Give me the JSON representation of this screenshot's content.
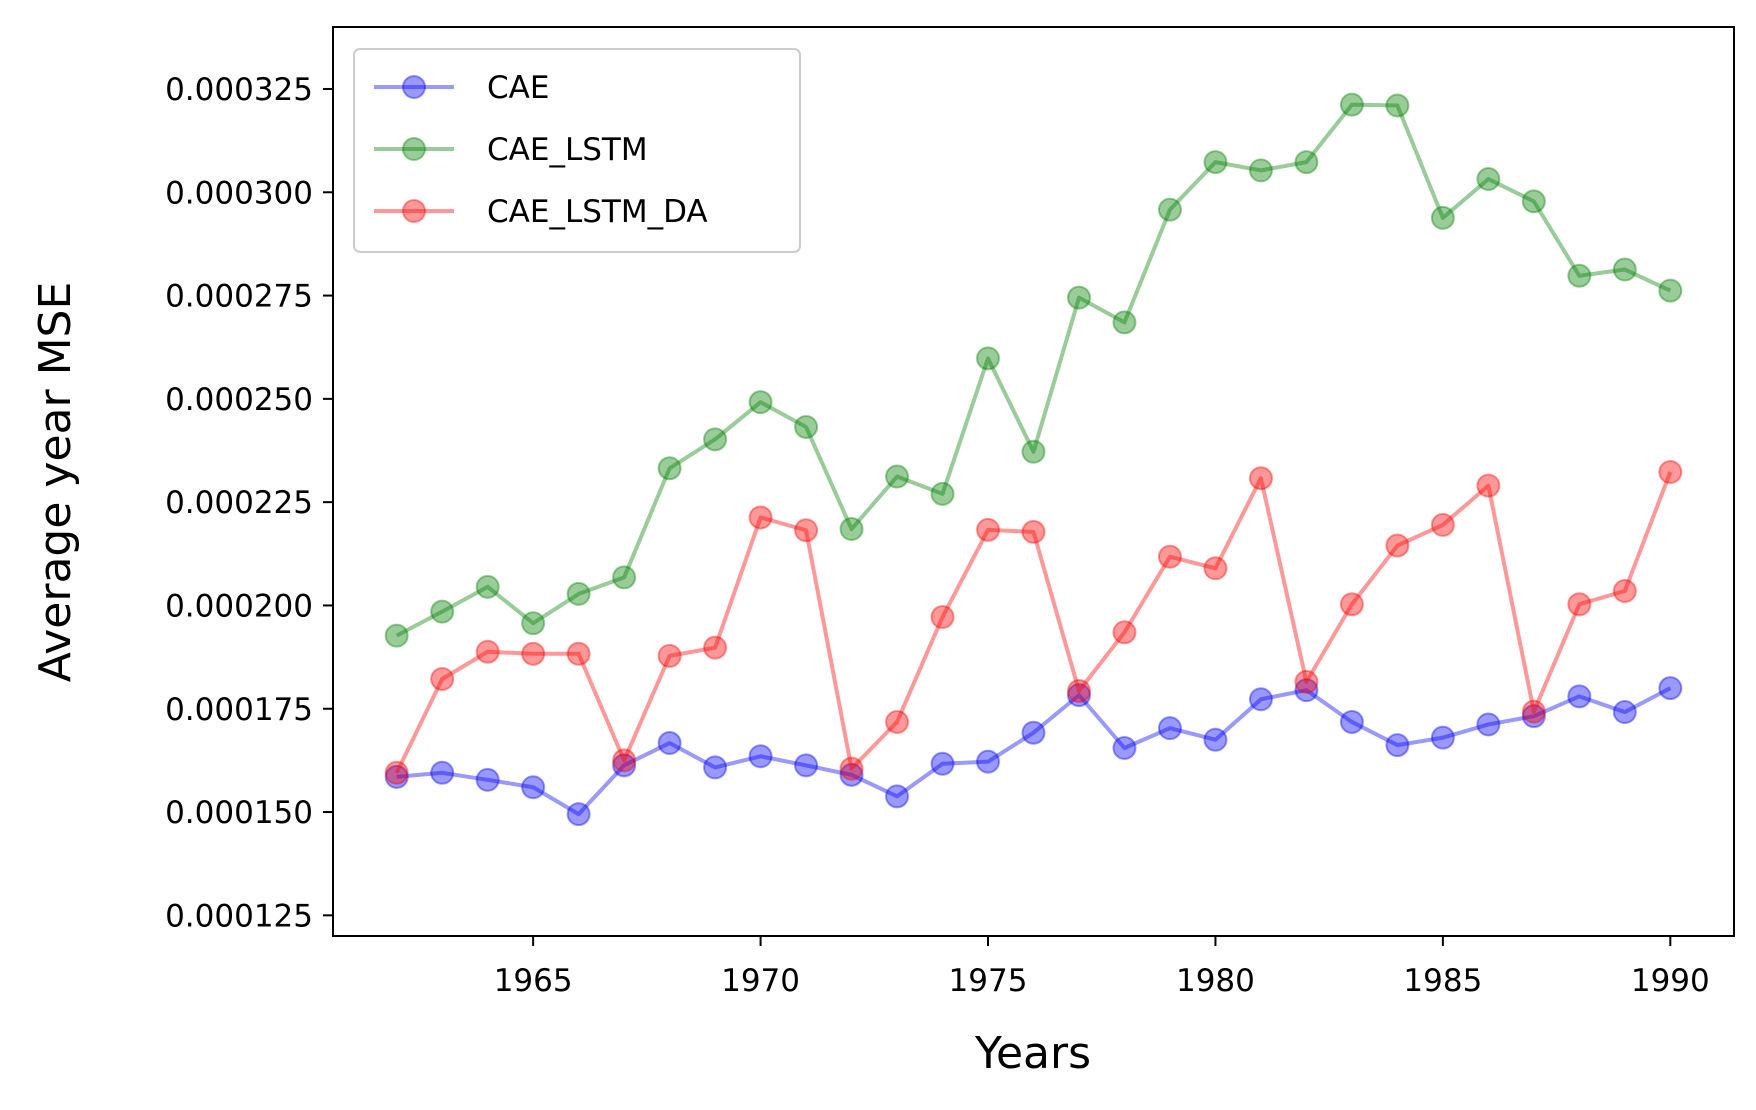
{
  "chart_data": {
    "type": "line",
    "title": "",
    "xlabel": "Years",
    "ylabel": "Average year MSE",
    "x": [
      1962,
      1963,
      1964,
      1965,
      1966,
      1967,
      1968,
      1969,
      1970,
      1971,
      1972,
      1973,
      1974,
      1975,
      1976,
      1977,
      1978,
      1979,
      1980,
      1981,
      1982,
      1983,
      1984,
      1985,
      1986,
      1987,
      1988,
      1989,
      1990
    ],
    "xlim": [
      1960.6,
      1991.4
    ],
    "ylim": [
      0.00012,
      0.00034
    ],
    "xticks": [
      1965,
      1970,
      1975,
      1980,
      1985,
      1990
    ],
    "xtick_labels": [
      "1965",
      "1970",
      "1975",
      "1980",
      "1985",
      "1990"
    ],
    "yticks": [
      0.000125,
      0.00015,
      0.000175,
      0.0002,
      0.000225,
      0.00025,
      0.000275,
      0.0003,
      0.000325
    ],
    "ytick_labels": [
      "0.000125",
      "0.000150",
      "0.000175",
      "0.000200",
      "0.000225",
      "0.000250",
      "0.000275",
      "0.000300",
      "0.000325"
    ],
    "grid": false,
    "legend_position": "top-left",
    "series": [
      {
        "name": "CAE",
        "color": "#0000ff",
        "values": [
          0.0001585,
          0.0001595,
          0.0001578,
          0.000156,
          0.0001495,
          0.0001613,
          0.0001667,
          0.0001608,
          0.0001635,
          0.0001613,
          0.000159,
          0.0001538,
          0.0001617,
          0.0001622,
          0.0001692,
          0.0001783,
          0.0001655,
          0.0001703,
          0.0001675,
          0.0001773,
          0.0001795,
          0.0001718,
          0.0001662,
          0.000168,
          0.0001712,
          0.0001732,
          0.000178,
          0.0001742,
          0.00018
        ]
      },
      {
        "name": "CAE_LSTM",
        "color": "#008000",
        "values": [
          0.0001927,
          0.0001985,
          0.0002045,
          0.0001957,
          0.0002028,
          0.0002068,
          0.0002332,
          0.0002402,
          0.0002492,
          0.0002432,
          0.0002185,
          0.0002312,
          0.000227,
          0.0002598,
          0.0002372,
          0.0002745,
          0.0002685,
          0.0002958,
          0.0003073,
          0.0003053,
          0.0003073,
          0.0003212,
          0.000321,
          0.0002938,
          0.0003032,
          0.0002978,
          0.0002798,
          0.0002813,
          0.0002762
        ]
      },
      {
        "name": "CAE_LSTM_DA",
        "color": "#ff0000",
        "values": [
          0.0001595,
          0.0001822,
          0.0001888,
          0.0001883,
          0.0001883,
          0.0001625,
          0.0001878,
          0.0001898,
          0.0002213,
          0.0002182,
          0.0001605,
          0.0001718,
          0.0001972,
          0.0002183,
          0.0002178,
          0.0001793,
          0.0001935,
          0.0002118,
          0.000209,
          0.0002308,
          0.0001815,
          0.0002003,
          0.0002145,
          0.0002195,
          0.000229,
          0.0001743,
          0.0002003,
          0.0002035,
          0.0002323
        ]
      }
    ]
  }
}
